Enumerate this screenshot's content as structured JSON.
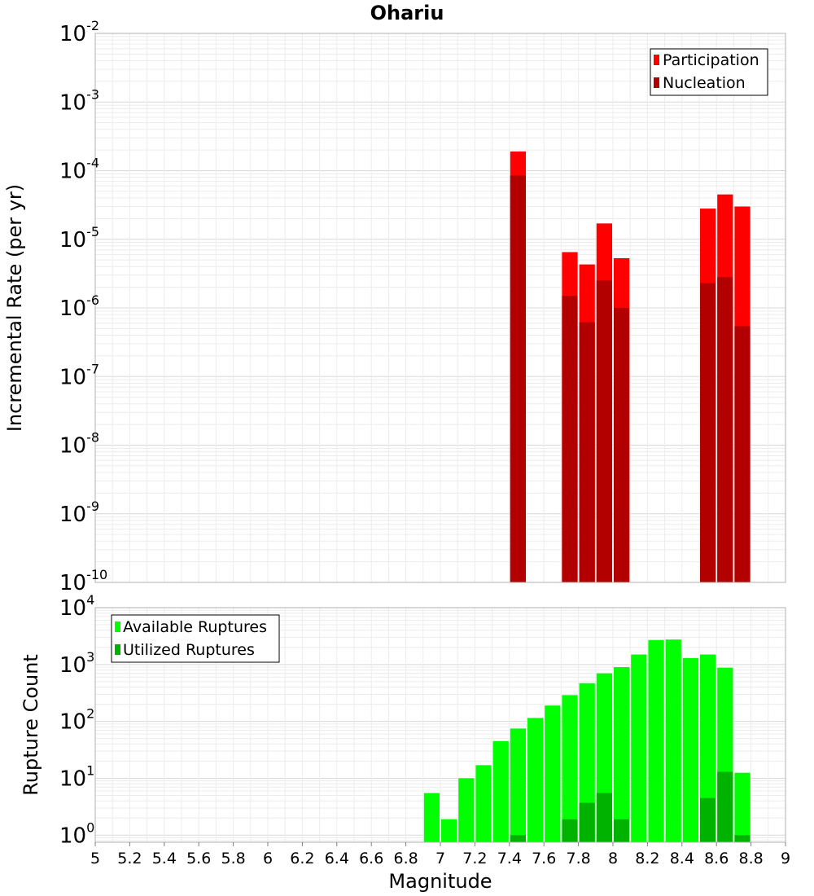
{
  "chart_data": [
    {
      "type": "bar",
      "title": "Ohariu",
      "ylabel": "Incremental Rate (per yr)",
      "xlabel": "",
      "y_scale": "log",
      "ylim": [
        1e-10,
        0.01
      ],
      "xlim": [
        5,
        9
      ],
      "bar_width": 0.1,
      "grid": true,
      "legend_position": "top-right",
      "y_ticks": [
        {
          "base": "10",
          "exp": "-10",
          "value": 1e-10
        },
        {
          "base": "10",
          "exp": "-9",
          "value": 1e-09
        },
        {
          "base": "10",
          "exp": "-8",
          "value": 1e-08
        },
        {
          "base": "10",
          "exp": "-7",
          "value": 1e-07
        },
        {
          "base": "10",
          "exp": "-6",
          "value": 1e-06
        },
        {
          "base": "10",
          "exp": "-5",
          "value": 1e-05
        },
        {
          "base": "10",
          "exp": "-4",
          "value": 0.0001
        },
        {
          "base": "10",
          "exp": "-3",
          "value": 0.001
        },
        {
          "base": "10",
          "exp": "-2",
          "value": 0.01
        }
      ],
      "series": [
        {
          "name": "Participation",
          "color": "#ff0000",
          "x": [
            7.45,
            7.75,
            7.85,
            7.95,
            8.05,
            8.55,
            8.65,
            8.75
          ],
          "values": [
            0.00019,
            6.5e-06,
            4.3e-06,
            1.7e-05,
            5.3e-06,
            2.8e-05,
            4.5e-05,
            3e-05
          ]
        },
        {
          "name": "Nucleation",
          "color": "#b20000",
          "x": [
            7.45,
            7.75,
            7.85,
            7.95,
            8.05,
            8.55,
            8.65,
            8.75
          ],
          "values": [
            8.5e-05,
            1.5e-06,
            6.2e-07,
            2.5e-06,
            1e-06,
            2.3e-06,
            2.8e-06,
            5.4e-07
          ]
        }
      ]
    },
    {
      "type": "bar",
      "title": "",
      "ylabel": "Rupture Count",
      "xlabel": "Magnitude",
      "y_scale": "log",
      "ylim": [
        0.75,
        10000
      ],
      "xlim": [
        5,
        9
      ],
      "bar_width": 0.1,
      "grid": true,
      "legend_position": "top-left",
      "y_ticks": [
        {
          "base": "10",
          "exp": "0",
          "value": 1
        },
        {
          "base": "10",
          "exp": "1",
          "value": 10
        },
        {
          "base": "10",
          "exp": "2",
          "value": 100
        },
        {
          "base": "10",
          "exp": "3",
          "value": 1000
        },
        {
          "base": "10",
          "exp": "4",
          "value": 10000
        }
      ],
      "x_ticks": [
        "5",
        "5.2",
        "5.4",
        "5.6",
        "5.8",
        "6",
        "6.2",
        "6.4",
        "6.6",
        "6.8",
        "7",
        "7.2",
        "7.4",
        "7.6",
        "7.8",
        "8",
        "8.2",
        "8.4",
        "8.6",
        "8.8",
        "9"
      ],
      "series": [
        {
          "name": "Available Ruptures",
          "color": "#00ff00",
          "x": [
            6.95,
            7.05,
            7.15,
            7.25,
            7.35,
            7.45,
            7.55,
            7.65,
            7.75,
            7.85,
            7.95,
            8.05,
            8.15,
            8.25,
            8.35,
            8.45,
            8.55,
            8.65,
            8.75
          ],
          "values": [
            5.5,
            1.9,
            10,
            17,
            45,
            75,
            115,
            190,
            290,
            470,
            700,
            900,
            1500,
            2700,
            2750,
            1300,
            1500,
            880,
            12.5
          ]
        },
        {
          "name": "Utilized Ruptures",
          "color": "#00b200",
          "x": [
            7.45,
            7.75,
            7.85,
            7.95,
            8.05,
            8.55,
            8.65,
            8.75
          ],
          "values": [
            1,
            1.9,
            3.7,
            5.5,
            1.9,
            4.5,
            13,
            1
          ]
        }
      ]
    }
  ]
}
